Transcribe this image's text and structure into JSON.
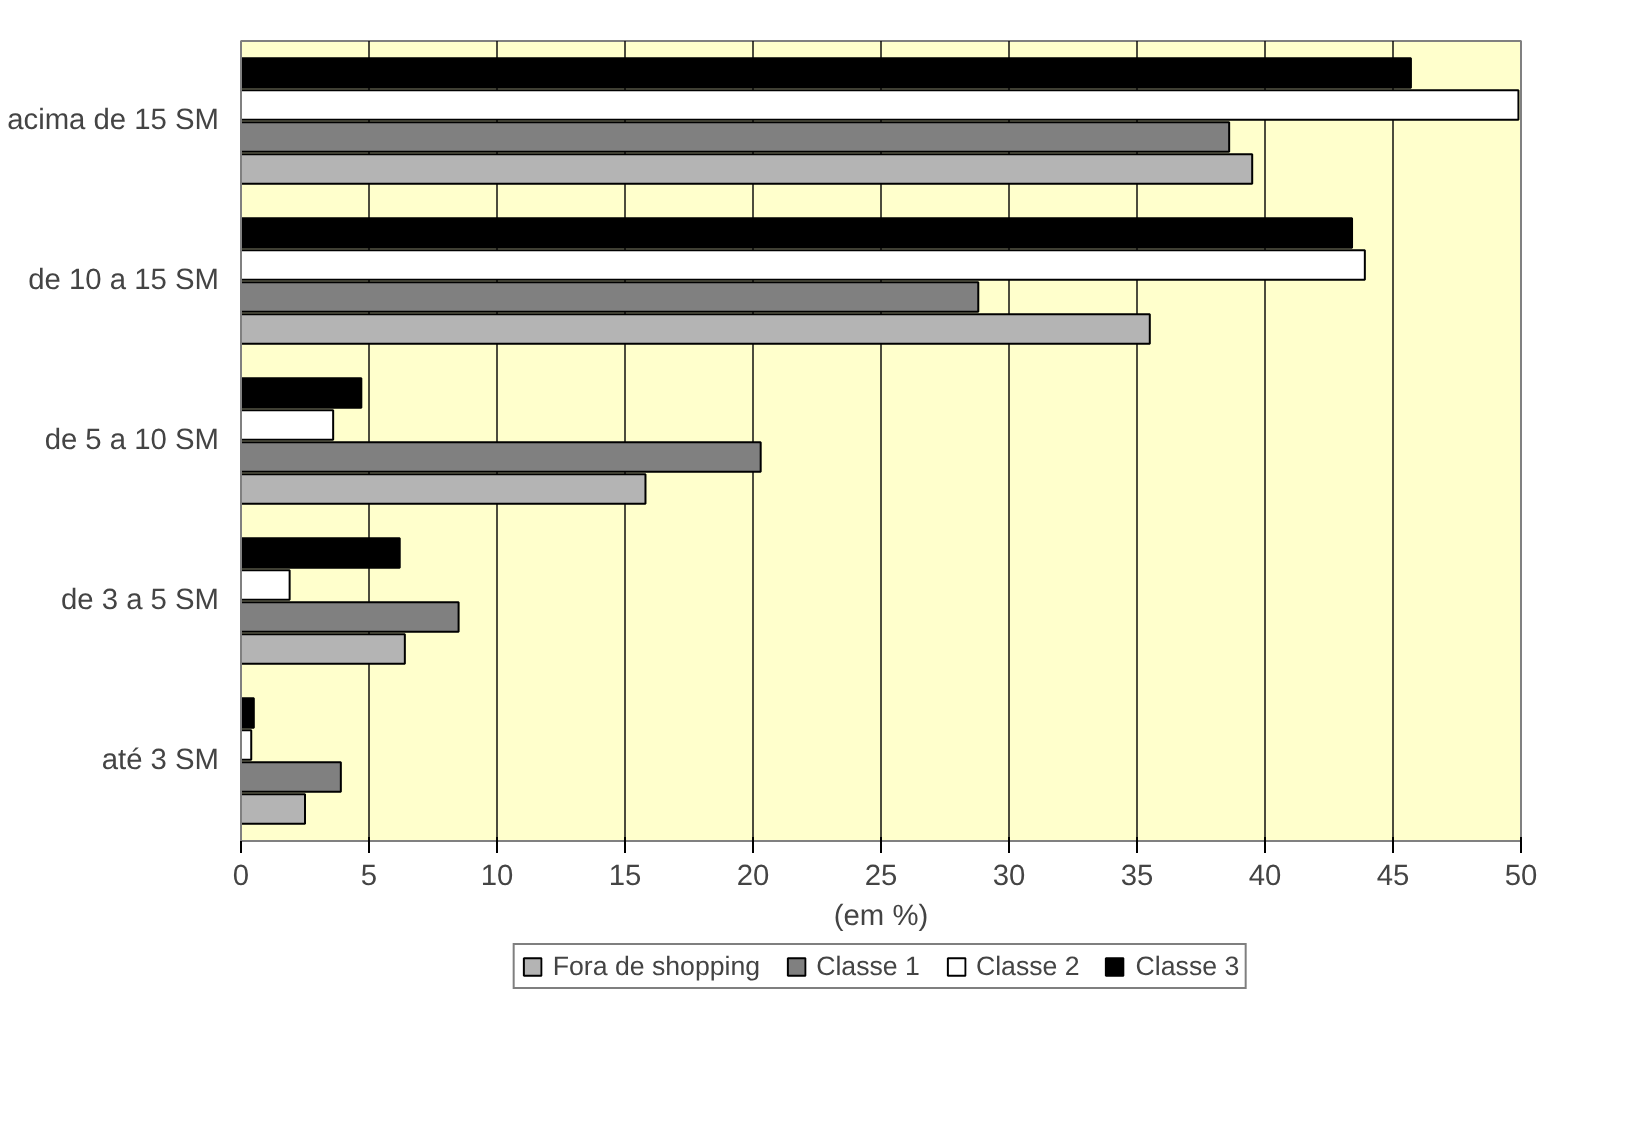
{
  "chart_data": {
    "type": "bar",
    "orientation": "horizontal",
    "xlabel": "(em %)",
    "categories": [
      "acima de 15 SM",
      "de 10 a 15 SM",
      "de 5 a 10 SM",
      "de 3 a 5 SM",
      "até 3 SM"
    ],
    "series": [
      {
        "name": "Fora de shopping",
        "color": "#b4b4b4",
        "values": [
          39.5,
          35.5,
          15.8,
          6.4,
          2.5
        ]
      },
      {
        "name": "Classe 1",
        "color": "#808080",
        "values": [
          38.6,
          28.8,
          20.3,
          8.5,
          3.9
        ]
      },
      {
        "name": "Classe 2",
        "color": "#ffffff",
        "values": [
          49.9,
          43.9,
          3.6,
          1.9,
          0.4
        ]
      },
      {
        "name": "Classe 3",
        "color": "#000000",
        "values": [
          45.7,
          43.4,
          4.7,
          6.2,
          0.5
        ]
      }
    ],
    "xlim": [
      0,
      50
    ],
    "xticks": [
      0,
      5,
      10,
      15,
      20,
      25,
      30,
      35,
      40,
      45,
      50
    ],
    "grid": "x",
    "legend": "bottom"
  }
}
